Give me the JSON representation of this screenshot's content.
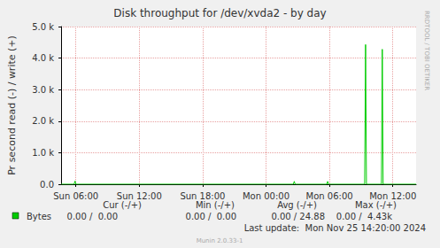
{
  "chart_data": {
    "type": "line",
    "title": "Disk throughput for /dev/xvda2 - by day",
    "y_label": "Pr second read (-) / write (+)",
    "x": [
      4.6,
      5.83,
      5.92,
      6.0,
      26.58,
      26.67,
      26.75,
      29.75,
      29.83,
      29.92,
      33.33,
      33.42,
      33.5,
      34.92,
      35.0,
      35.08,
      38.2
    ],
    "series": [
      {
        "name": "Bytes",
        "color": "#00cc00",
        "values": [
          0,
          0,
          100,
          0,
          0,
          90,
          0,
          0,
          90,
          0,
          0,
          4430,
          0,
          0,
          4280,
          0,
          0
        ]
      }
    ],
    "xlim": [
      4.6,
      38.2
    ],
    "xticks": [
      {
        "value": 6,
        "label": "Sun 06:00"
      },
      {
        "value": 12,
        "label": "Sun 12:00"
      },
      {
        "value": 18,
        "label": "Sun 18:00"
      },
      {
        "value": 24,
        "label": "Mon 00:00"
      },
      {
        "value": 30,
        "label": "Mon 06:00"
      },
      {
        "value": 36,
        "label": "Mon 12:00"
      }
    ],
    "ylim": [
      0,
      5000
    ],
    "yticks": [
      {
        "value": 0,
        "label": "0.0"
      },
      {
        "value": 1000,
        "label": "1.0 k"
      },
      {
        "value": 2000,
        "label": "2.0 k"
      },
      {
        "value": 3000,
        "label": "3.0 k"
      },
      {
        "value": 4000,
        "label": "4.0 k"
      },
      {
        "value": 5000,
        "label": "5.0 k"
      }
    ],
    "grid": true,
    "legend_table": {
      "headers": [
        "Cur (-/+)",
        "Min (-/+)",
        "Avg (-/+)",
        "Max (-/+)"
      ],
      "cells": [
        "0.00 /  0.00",
        "0.00 /  0.00",
        "0.00 / 24.88",
        "0.00 /  4.43k"
      ]
    },
    "footer": "Last update:  Mon Nov 25 14:20:00 2024",
    "side_text": "RRDTOOL / TOBI OETIKER",
    "credit": "Munin 2.0.33-1"
  }
}
